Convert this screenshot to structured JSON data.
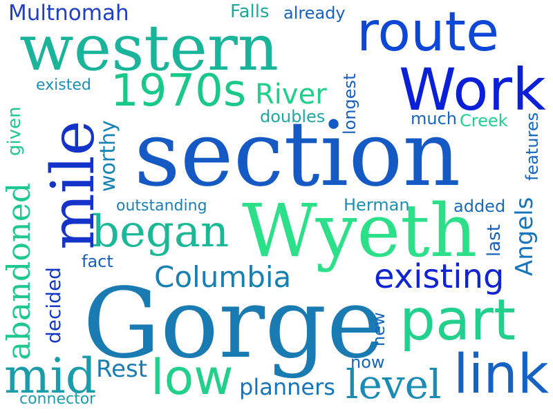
{
  "words": [
    {
      "text": "Multnomah",
      "color": "#1f3fc8"
    },
    {
      "text": "Falls",
      "color": "#1ea89a"
    },
    {
      "text": "already",
      "color": "#1565c0"
    },
    {
      "text": "route",
      "color": "#0d47d8"
    },
    {
      "text": "western",
      "color": "#1ab49a"
    },
    {
      "text": "Work",
      "color": "#0a1fd8"
    },
    {
      "text": "1970s",
      "color": "#19c98a"
    },
    {
      "text": "River",
      "color": "#1fcf8a"
    },
    {
      "text": "existed",
      "color": "#1a8fb4"
    },
    {
      "text": "doubles",
      "color": "#1fa8a0"
    },
    {
      "text": "longest",
      "color": "#155fc0"
    },
    {
      "text": "much",
      "color": "#1566c0"
    },
    {
      "text": "Creek",
      "color": "#20d090"
    },
    {
      "text": "given",
      "color": "#1fc890"
    },
    {
      "text": "mile",
      "color": "#1433c8"
    },
    {
      "text": "worthy",
      "color": "#1583b6"
    },
    {
      "text": "section",
      "color": "#1459c4"
    },
    {
      "text": "features",
      "color": "#1566c0"
    },
    {
      "text": "outstanding",
      "color": "#1a80b4"
    },
    {
      "text": "Herman",
      "color": "#1a8fb4"
    },
    {
      "text": "added",
      "color": "#1b6ab8"
    },
    {
      "text": "Wyeth",
      "color": "#2ce08a"
    },
    {
      "text": "abandoned",
      "color": "#1fc890"
    },
    {
      "text": "began",
      "color": "#1ab896"
    },
    {
      "text": "Angels",
      "color": "#1575bc"
    },
    {
      "text": "last",
      "color": "#1560c0"
    },
    {
      "text": "fact",
      "color": "#165ebe"
    },
    {
      "text": "Columbia",
      "color": "#1780b2"
    },
    {
      "text": "existing",
      "color": "#1024d4"
    },
    {
      "text": "decided",
      "color": "#1438c6"
    },
    {
      "text": "Gorge",
      "color": "#1a7ab2"
    },
    {
      "text": "part",
      "color": "#21d08c"
    },
    {
      "text": "new",
      "color": "#1566c0"
    },
    {
      "text": "now",
      "color": "#1566c0"
    },
    {
      "text": "mid",
      "color": "#1a9caa"
    },
    {
      "text": "Rest",
      "color": "#1a7cb4"
    },
    {
      "text": "low",
      "color": "#21d08a"
    },
    {
      "text": "planners",
      "color": "#1575bc"
    },
    {
      "text": "level",
      "color": "#1a8cb4"
    },
    {
      "text": "link",
      "color": "#1462c4"
    },
    {
      "text": "connector",
      "color": "#1a9caa"
    }
  ]
}
